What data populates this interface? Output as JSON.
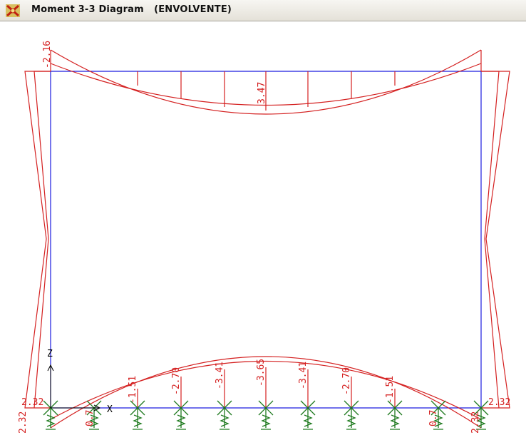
{
  "window": {
    "title": "Moment 3-3 Diagram   (ENVOLVENTE)",
    "icon": "sap-app-icon"
  },
  "colors": {
    "frame": "#1a1adf",
    "diagram": "#d42020",
    "support": "#1f7a1f",
    "axes": "#000000"
  },
  "axes": {
    "z_label": "Z",
    "x_label": "X"
  },
  "labels": {
    "top_beam_mid": "3.47",
    "top_left_corner": "-2.16",
    "left_col_bottom": "2.32",
    "right_col_bottom": "2.32",
    "bottom_left_end": "2.32",
    "bottom_right_end": "2.32",
    "bottom_values": [
      "0.7",
      "-1.51",
      "-2.70",
      "-3.41",
      "-3.65",
      "-3.41",
      "-2.70",
      "-1.51",
      "0.7"
    ]
  }
}
